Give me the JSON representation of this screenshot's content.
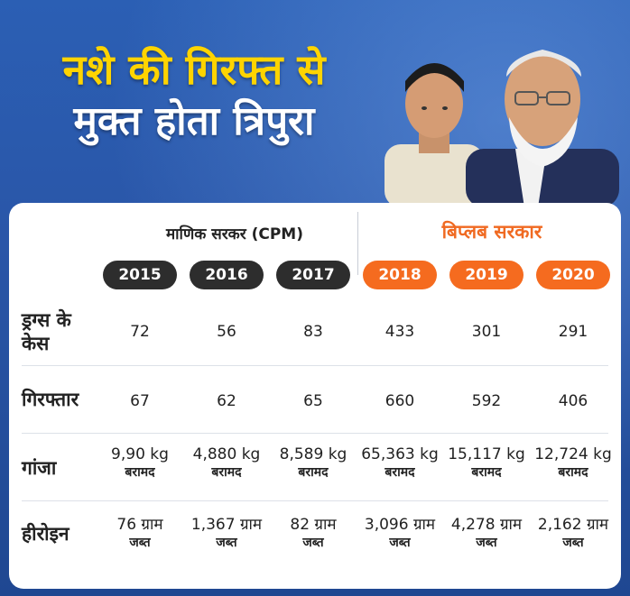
{
  "headline": {
    "line1": "नशे की गिरफ्त से",
    "line2": "मुक्त होता त्रिपुरा"
  },
  "groups": {
    "left": "माणिक सरकर (CPM)",
    "right": "बिप्लब सरकार"
  },
  "years": [
    "2015",
    "2016",
    "2017",
    "2018",
    "2019",
    "2020"
  ],
  "colors": {
    "dark_pill": "#2d2d2d",
    "orange_pill": "#f56b1f",
    "headline_yellow": "#ffd400",
    "accent_orange": "#f06a22"
  },
  "rows": [
    {
      "label": "ड्रग्स के केस",
      "cells": [
        {
          "main": "72",
          "sub": ""
        },
        {
          "main": "56",
          "sub": ""
        },
        {
          "main": "83",
          "sub": ""
        },
        {
          "main": "433",
          "sub": ""
        },
        {
          "main": "301",
          "sub": ""
        },
        {
          "main": "291",
          "sub": ""
        }
      ]
    },
    {
      "label": "गिरफ्तार",
      "cells": [
        {
          "main": "67",
          "sub": ""
        },
        {
          "main": "62",
          "sub": ""
        },
        {
          "main": "65",
          "sub": ""
        },
        {
          "main": "660",
          "sub": ""
        },
        {
          "main": "592",
          "sub": ""
        },
        {
          "main": "406",
          "sub": ""
        }
      ]
    },
    {
      "label": "गांजा",
      "cells": [
        {
          "main": "9,90 kg",
          "sub": "बरामद"
        },
        {
          "main": "4,880 kg",
          "sub": "बरामद"
        },
        {
          "main": "8,589 kg",
          "sub": "बरामद"
        },
        {
          "main": "65,363 kg",
          "sub": "बरामद"
        },
        {
          "main": "15,117 kg",
          "sub": "बरामद"
        },
        {
          "main": "12,724 kg",
          "sub": "बरामद"
        }
      ]
    },
    {
      "label": "हीरोइन",
      "cells": [
        {
          "main": "76 ग्राम",
          "sub": "जब्त"
        },
        {
          "main": "1,367 ग्राम",
          "sub": "जब्त"
        },
        {
          "main": "82 ग्राम",
          "sub": "जब्त"
        },
        {
          "main": "3,096 ग्राम",
          "sub": "जब्त"
        },
        {
          "main": "4,278 ग्राम",
          "sub": "जब्त"
        },
        {
          "main": "2,162 ग्राम",
          "sub": "जब्त"
        }
      ]
    }
  ]
}
